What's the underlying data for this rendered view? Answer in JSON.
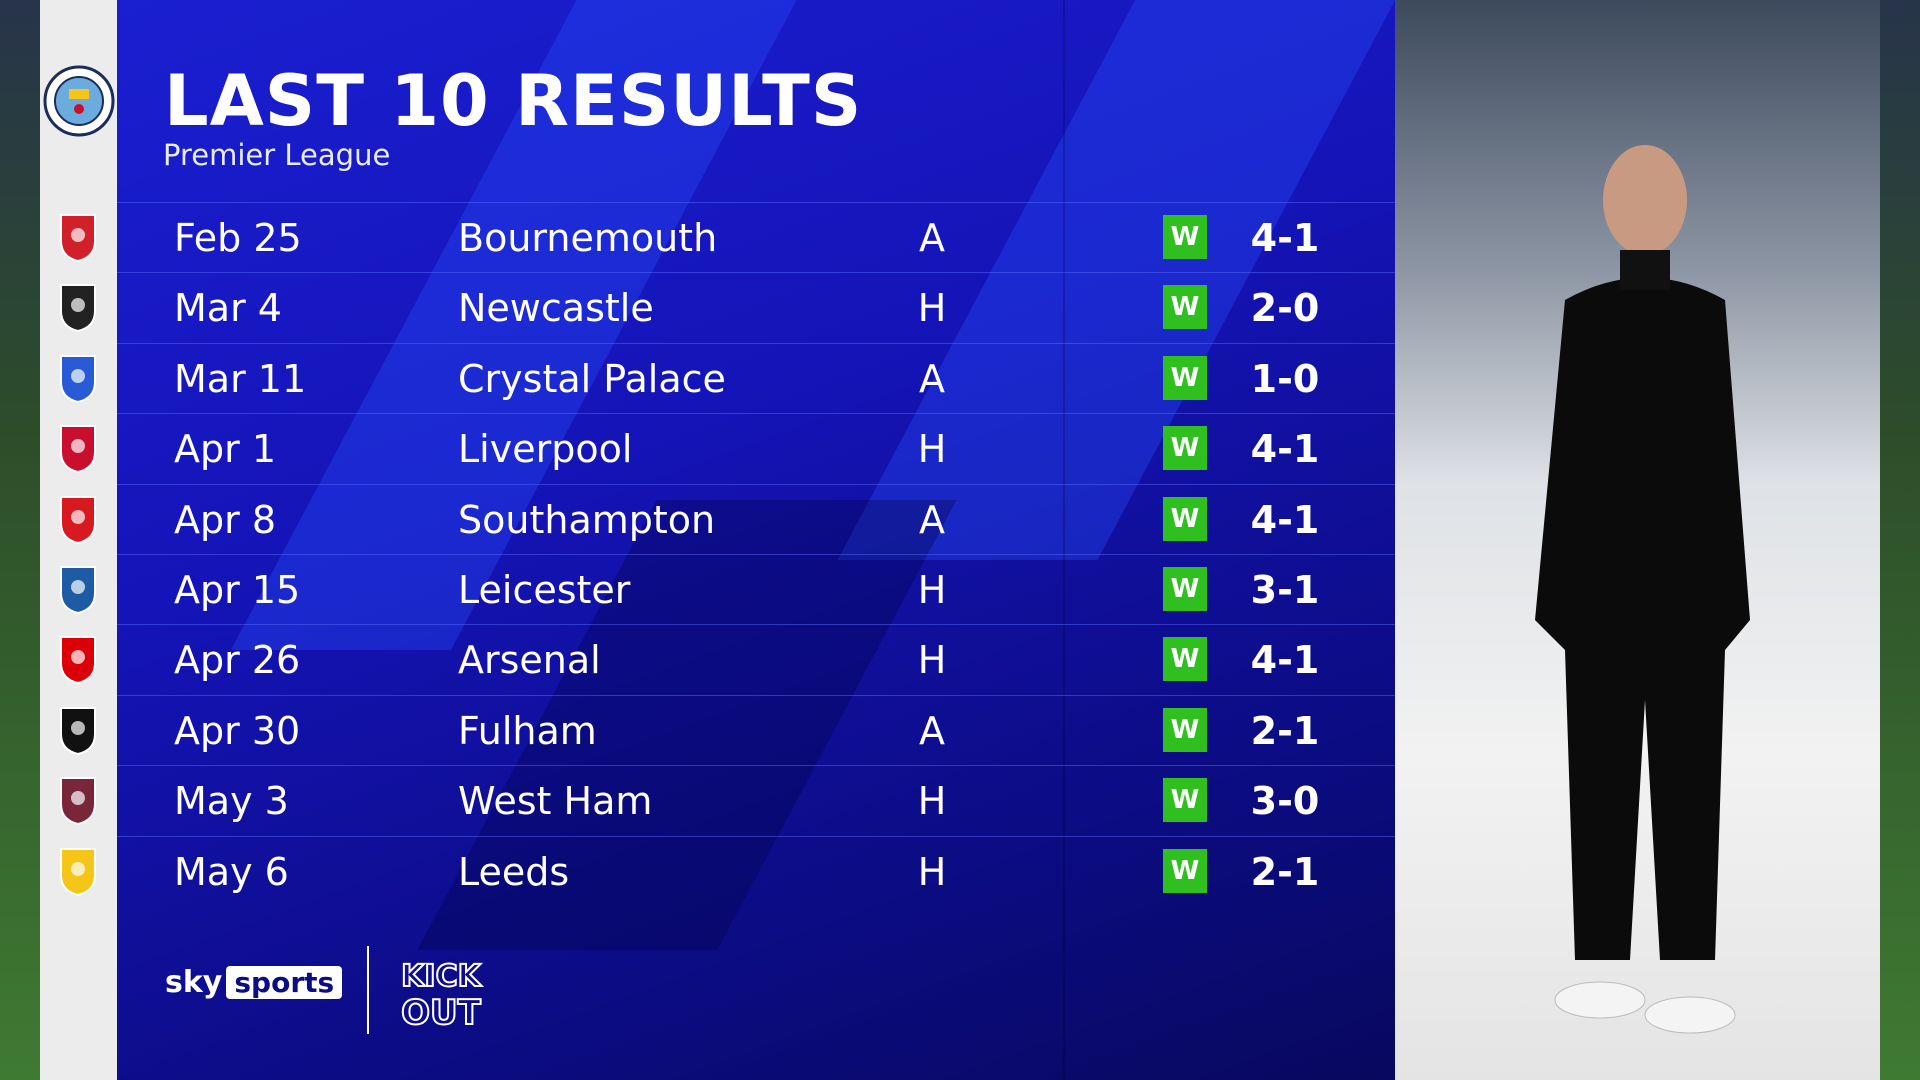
{
  "header": {
    "title": "LAST 10 RESULTS",
    "subtitle": "Premier League"
  },
  "team_crest": "manchester-city-crest",
  "colors": {
    "panel": "#1514b8",
    "win": "#2fbf1f",
    "crest_bg": "#ececec"
  },
  "results": [
    {
      "date": "Feb 25",
      "opponent": "Bournemouth",
      "venue": "A",
      "result": "W",
      "score": "4-1",
      "crest": "bournemouth-crest",
      "crest_color": "#d0202a"
    },
    {
      "date": "Mar 4",
      "opponent": "Newcastle",
      "venue": "H",
      "result": "W",
      "score": "2-0",
      "crest": "newcastle-crest",
      "crest_color": "#222222"
    },
    {
      "date": "Mar 11",
      "opponent": "Crystal Palace",
      "venue": "A",
      "result": "W",
      "score": "1-0",
      "crest": "crystal-palace-crest",
      "crest_color": "#2a5bd7"
    },
    {
      "date": "Apr 1",
      "opponent": "Liverpool",
      "venue": "H",
      "result": "W",
      "score": "4-1",
      "crest": "liverpool-crest",
      "crest_color": "#c8102e"
    },
    {
      "date": "Apr 8",
      "opponent": "Southampton",
      "venue": "A",
      "result": "W",
      "score": "4-1",
      "crest": "southampton-crest",
      "crest_color": "#d71920"
    },
    {
      "date": "Apr 15",
      "opponent": "Leicester",
      "venue": "H",
      "result": "W",
      "score": "3-1",
      "crest": "leicester-crest",
      "crest_color": "#1d5ba4"
    },
    {
      "date": "Apr 26",
      "opponent": "Arsenal",
      "venue": "H",
      "result": "W",
      "score": "4-1",
      "crest": "arsenal-crest",
      "crest_color": "#db0007"
    },
    {
      "date": "Apr 30",
      "opponent": "Fulham",
      "venue": "A",
      "result": "W",
      "score": "2-1",
      "crest": "fulham-crest",
      "crest_color": "#111111"
    },
    {
      "date": "May 3",
      "opponent": "West Ham",
      "venue": "H",
      "result": "W",
      "score": "3-0",
      "crest": "west-ham-crest",
      "crest_color": "#7a263a"
    },
    {
      "date": "May 6",
      "opponent": "Leeds",
      "venue": "H",
      "result": "W",
      "score": "2-1",
      "crest": "leeds-crest",
      "crest_color": "#f5c518"
    }
  ],
  "footer": {
    "sky": "sky",
    "sports": "sports",
    "campaign_logo": "KICK IT OUT"
  }
}
